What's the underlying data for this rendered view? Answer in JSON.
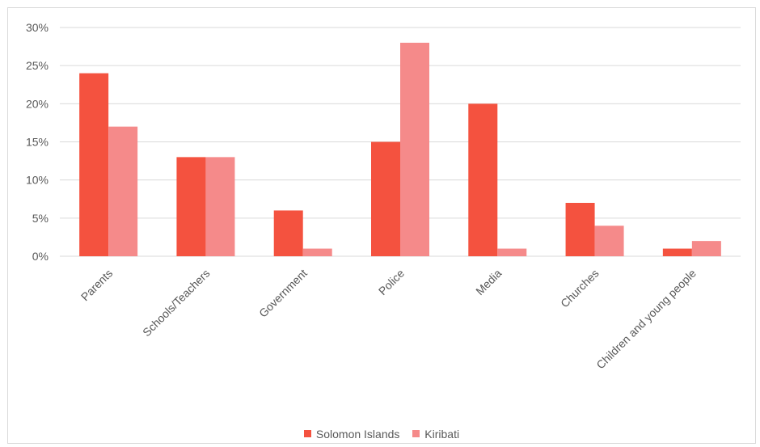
{
  "chart_data": {
    "type": "bar",
    "categories": [
      "Parents",
      "Schools/Teachers",
      "Government",
      "Police",
      "Media",
      "Churches",
      "Children and young people"
    ],
    "series": [
      {
        "name": "Solomon Islands",
        "values": [
          24,
          13,
          6,
          15,
          20,
          7,
          1
        ],
        "color": "#f4523f"
      },
      {
        "name": "Kiribati",
        "values": [
          17,
          13,
          1,
          28,
          1,
          4,
          2
        ],
        "color": "#f58a8a"
      }
    ],
    "ylim": [
      0,
      30
    ],
    "yticks": [
      0,
      5,
      10,
      15,
      20,
      25,
      30
    ],
    "ytick_labels": [
      "0%",
      "5%",
      "10%",
      "15%",
      "20%",
      "25%",
      "30%"
    ],
    "grid": true,
    "legend_position": "bottom"
  }
}
